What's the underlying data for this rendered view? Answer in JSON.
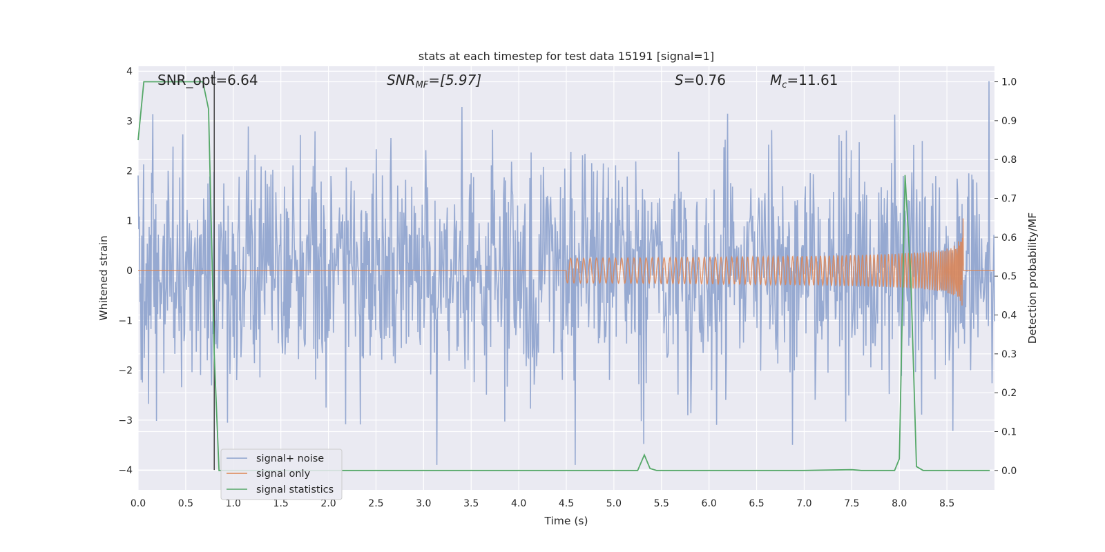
{
  "chart_data": {
    "type": "line",
    "title": "stats at each timestep for test data 15191 [signal=1]",
    "xlabel": "Time (s)",
    "ylabel": "Whitened strain",
    "ylabel_right": "Detection probability/MF",
    "xlim": [
      0,
      9
    ],
    "ylim": [
      -4.4,
      4.1
    ],
    "ylim_right": [
      -0.05,
      1.04
    ],
    "x_ticks": [
      "0.0",
      "0.5",
      "1.0",
      "1.5",
      "2.0",
      "2.5",
      "3.0",
      "3.5",
      "4.0",
      "4.5",
      "5.0",
      "5.5",
      "6.0",
      "6.5",
      "7.0",
      "7.5",
      "8.0",
      "8.5"
    ],
    "y_ticks": [
      "4",
      "3",
      "2",
      "1",
      "0",
      "−1",
      "−2",
      "−3",
      "−4"
    ],
    "y_ticks_right": [
      "1.0",
      "0.9",
      "0.8",
      "0.7",
      "0.6",
      "0.5",
      "0.4",
      "0.3",
      "0.2",
      "0.1",
      "0.0"
    ],
    "grid": true,
    "legend_position": "lower-left",
    "annotations": {
      "snr_opt": "SNR_opt=6.64",
      "snr_mf_base": "SNR",
      "snr_mf_sub": "MF",
      "snr_mf_value": "=[5.97]",
      "s_symbol": "S",
      "s_value": "=0.76",
      "mc_symbol": "M",
      "mc_sub": "c",
      "mc_value": "=11.61"
    },
    "vline_x": 0.8,
    "series": [
      {
        "name": "signal+ noise",
        "color": "#8da2cd",
        "description_values": "whitened strain noise, approx range -3.6 to 3.8, typical amplitude ~1.7"
      },
      {
        "name": "signal only",
        "color": "#dd8452",
        "chirp_start": 4.5,
        "chirp_end": 8.67,
        "amplitude_peak": 1.1,
        "amplitude_min": -1.0
      },
      {
        "name": "signal statistics",
        "color": "#55a868",
        "axis": "right",
        "x": [
          0.0,
          0.06,
          0.12,
          0.2,
          0.3,
          0.4,
          0.5,
          0.6,
          0.68,
          0.74,
          0.8,
          0.85,
          0.9,
          1.0,
          2.0,
          3.0,
          4.0,
          5.0,
          5.25,
          5.32,
          5.38,
          5.45,
          6.0,
          7.0,
          7.5,
          7.6,
          7.95,
          8.0,
          8.06,
          8.12,
          8.18,
          8.25,
          8.5,
          8.95
        ],
        "y": [
          0.85,
          1.0,
          1.0,
          1.0,
          1.0,
          1.0,
          1.0,
          1.0,
          1.0,
          0.93,
          0.3,
          0.0,
          0.0,
          0.0,
          0.0,
          0.0,
          0.0,
          0.0,
          0.0,
          0.04,
          0.005,
          0.0,
          0.0,
          0.0,
          0.002,
          0.0,
          0.0,
          0.03,
          0.76,
          0.5,
          0.01,
          0.0,
          0.0,
          0.0
        ]
      }
    ]
  }
}
